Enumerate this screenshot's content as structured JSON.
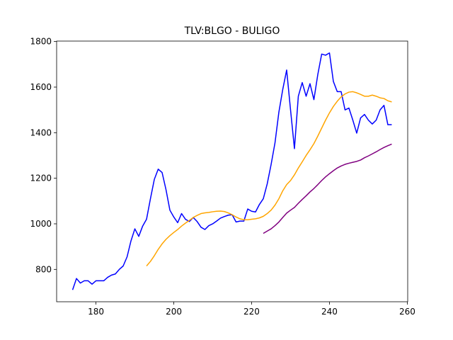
{
  "chart_data": {
    "type": "line",
    "title": "TLV:BLGO - BULIGO",
    "x": [
      174,
      175,
      176,
      177,
      178,
      179,
      180,
      181,
      182,
      183,
      184,
      185,
      186,
      187,
      188,
      189,
      190,
      191,
      192,
      193,
      194,
      195,
      196,
      197,
      198,
      199,
      200,
      201,
      202,
      203,
      204,
      205,
      206,
      207,
      208,
      209,
      210,
      211,
      212,
      213,
      214,
      215,
      216,
      217,
      218,
      219,
      220,
      221,
      222,
      223,
      224,
      225,
      226,
      227,
      228,
      229,
      230,
      231,
      232,
      233,
      234,
      235,
      236,
      237,
      238,
      239,
      240,
      241,
      242,
      243,
      244,
      245,
      246,
      247,
      248,
      249,
      250,
      251,
      252,
      253,
      254,
      255,
      256
    ],
    "series": [
      {
        "color": "#0000ff",
        "values": [
          710,
          760,
          740,
          750,
          750,
          735,
          750,
          750,
          750,
          765,
          775,
          780,
          800,
          815,
          855,
          925,
          978,
          945,
          990,
          1020,
          1110,
          1195,
          1240,
          1225,
          1150,
          1060,
          1030,
          1005,
          1045,
          1020,
          1010,
          1028,
          1010,
          985,
          975,
          992,
          1000,
          1012,
          1025,
          1032,
          1038,
          1040,
          1008,
          1012,
          1012,
          1065,
          1055,
          1052,
          1085,
          1110,
          1175,
          1260,
          1355,
          1490,
          1590,
          1675,
          1500,
          1330,
          1560,
          1620,
          1560,
          1615,
          1545,
          1655,
          1745,
          1740,
          1750,
          1625,
          1580,
          1580,
          1500,
          1508,
          1455,
          1398,
          1465,
          1480,
          1455,
          1438,
          1455,
          1500,
          1520,
          1435,
          1435
        ]
      },
      {
        "color": "#ffa500",
        "values": [
          null,
          null,
          null,
          null,
          null,
          null,
          null,
          null,
          null,
          null,
          null,
          null,
          null,
          null,
          null,
          null,
          null,
          null,
          null,
          815,
          835,
          860,
          888,
          912,
          932,
          948,
          962,
          975,
          990,
          1003,
          1015,
          1028,
          1037,
          1045,
          1048,
          1050,
          1053,
          1055,
          1056,
          1054,
          1048,
          1040,
          1030,
          1022,
          1018,
          1018,
          1020,
          1022,
          1026,
          1033,
          1045,
          1060,
          1082,
          1110,
          1145,
          1172,
          1190,
          1215,
          1245,
          1272,
          1300,
          1325,
          1352,
          1385,
          1420,
          1455,
          1487,
          1515,
          1538,
          1557,
          1570,
          1578,
          1580,
          1575,
          1568,
          1560,
          1560,
          1565,
          1560,
          1553,
          1550,
          1540,
          1535
        ]
      },
      {
        "color": "#800080",
        "values": [
          null,
          null,
          null,
          null,
          null,
          null,
          null,
          null,
          null,
          null,
          null,
          null,
          null,
          null,
          null,
          null,
          null,
          null,
          null,
          null,
          null,
          null,
          null,
          null,
          null,
          null,
          null,
          null,
          null,
          null,
          null,
          null,
          null,
          null,
          null,
          null,
          null,
          null,
          null,
          null,
          null,
          null,
          null,
          null,
          null,
          null,
          null,
          null,
          null,
          958,
          968,
          978,
          992,
          1008,
          1028,
          1047,
          1060,
          1072,
          1090,
          1107,
          1123,
          1140,
          1155,
          1172,
          1190,
          1206,
          1220,
          1233,
          1245,
          1254,
          1261,
          1266,
          1270,
          1274,
          1280,
          1290,
          1298,
          1307,
          1316,
          1326,
          1335,
          1343,
          1350
        ]
      }
    ],
    "xlim": [
      169.9,
      260.1
    ],
    "ylim": [
      658,
      1802
    ],
    "xticks": [
      180,
      200,
      220,
      240,
      260
    ],
    "yticks": [
      800,
      1000,
      1200,
      1400,
      1600,
      1800
    ]
  }
}
